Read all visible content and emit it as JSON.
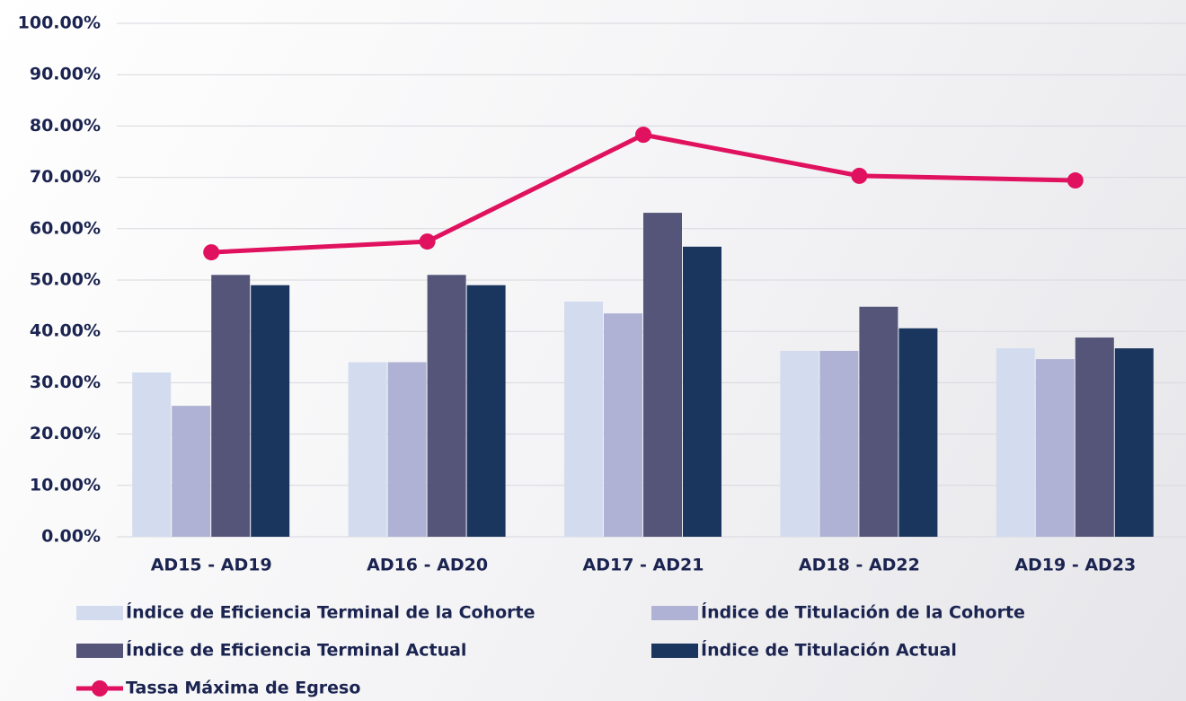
{
  "chart_data": {
    "type": "bar",
    "categories": [
      "AD15 - AD19",
      "AD16 - AD20",
      "AD17 - AD21",
      "AD18 - AD22",
      "AD19 - AD23"
    ],
    "series": [
      {
        "name": "Índice de Eficiencia Terminal de la Cohorte",
        "color": "#d3dcee",
        "values": [
          32.0,
          34.0,
          45.8,
          36.2,
          36.7
        ]
      },
      {
        "name": "Índice de Titulación de la Cohorte",
        "color": "#b0b2d5",
        "values": [
          25.5,
          34.0,
          43.5,
          36.2,
          34.6
        ]
      },
      {
        "name": "Índice de Eficiencia Terminal Actual",
        "color": "#55557a",
        "values": [
          51.0,
          51.0,
          63.1,
          44.8,
          38.8
        ]
      },
      {
        "name": "Índice de Titulación Actual",
        "color": "#1b365e",
        "values": [
          49.0,
          49.0,
          56.5,
          40.6,
          36.7
        ]
      },
      {
        "name": "Tassa Máxima de Egreso",
        "color": "#e0115f",
        "type": "line",
        "values": [
          55.4,
          57.5,
          78.3,
          70.3,
          69.4
        ]
      }
    ],
    "ylim": [
      0,
      100
    ],
    "yticks": [
      {
        "value": 0,
        "label": "0.00%"
      },
      {
        "value": 10,
        "label": "10.00%"
      },
      {
        "value": 20,
        "label": "20.00%"
      },
      {
        "value": 30,
        "label": "30.00%"
      },
      {
        "value": 40,
        "label": "40.00%"
      },
      {
        "value": 50,
        "label": "50.00%"
      },
      {
        "value": 60,
        "label": "60.00%"
      },
      {
        "value": 70,
        "label": "70.00%"
      },
      {
        "value": 80,
        "label": "80.00%"
      },
      {
        "value": 90,
        "label": "90.00%"
      },
      {
        "value": 100,
        "label": "100.00%"
      }
    ],
    "grid": true
  }
}
